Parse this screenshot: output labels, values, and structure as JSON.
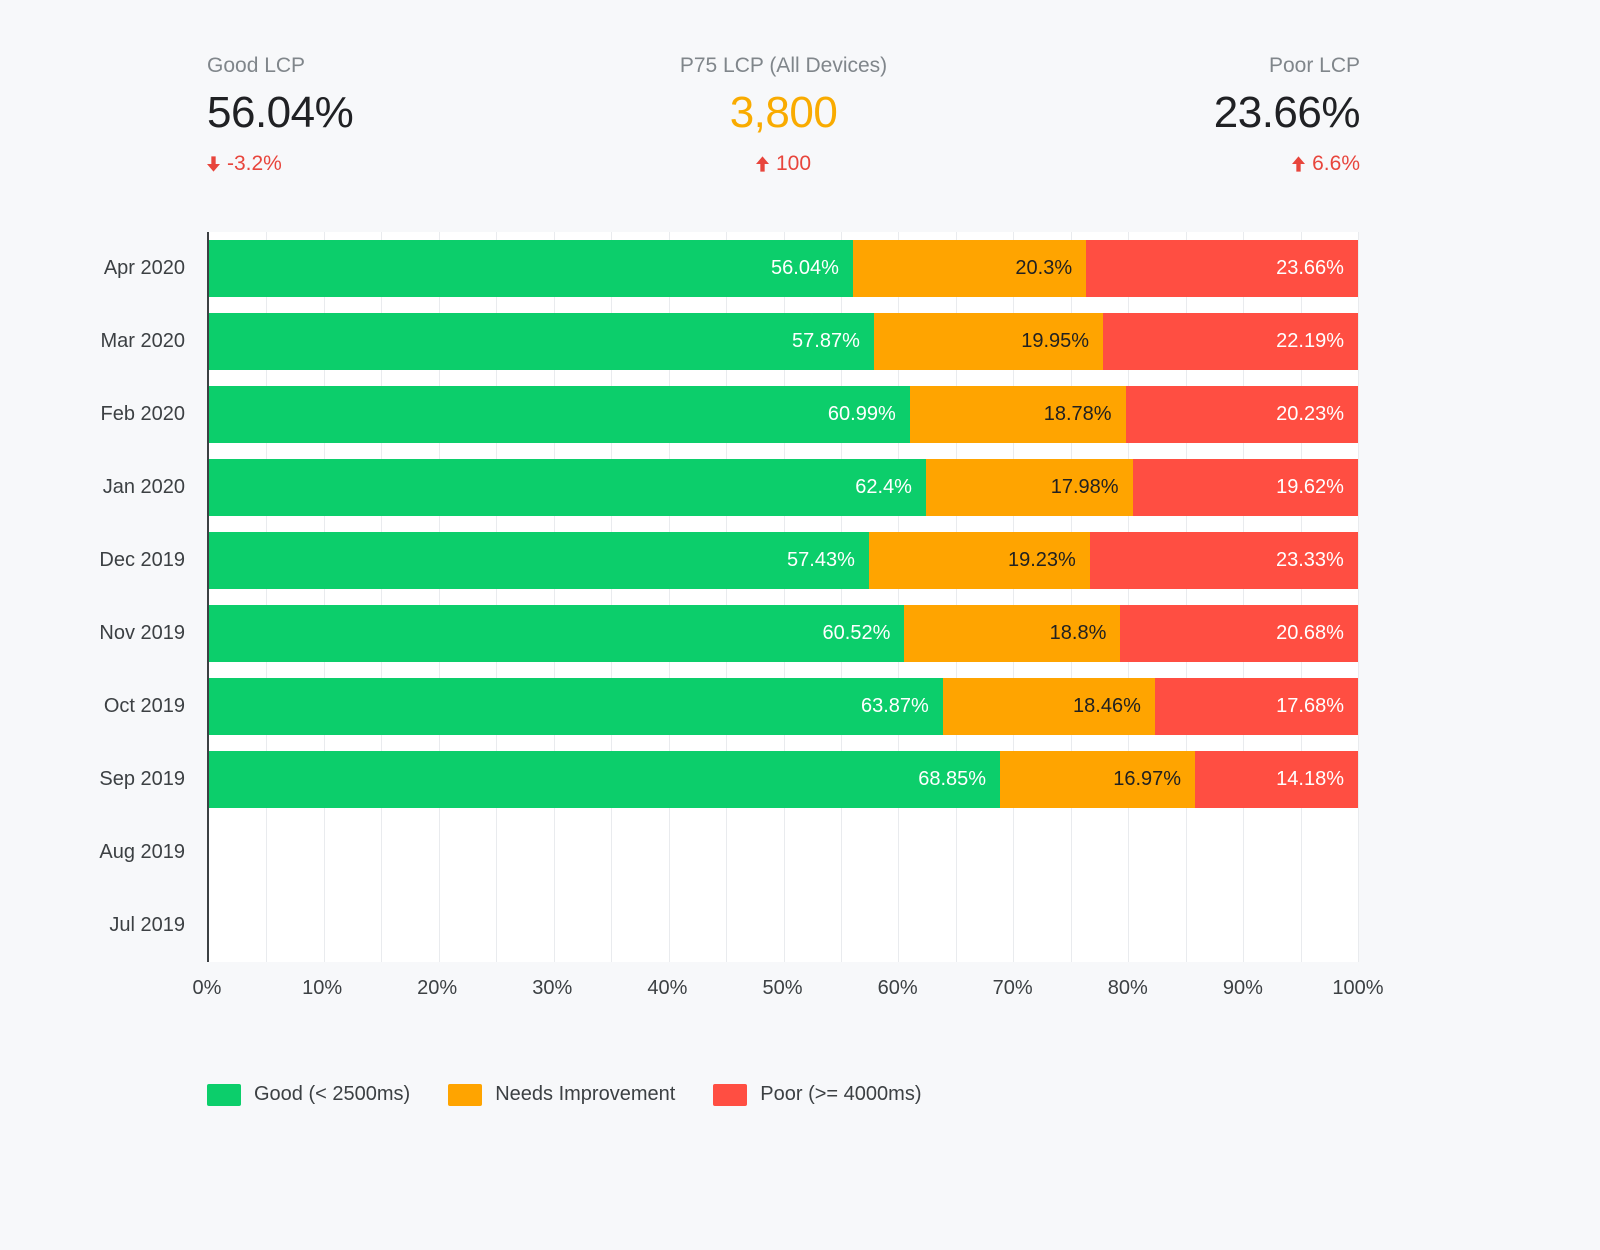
{
  "kpis": [
    {
      "label": "Good LCP",
      "value": "56.04%",
      "value_color": "#202124",
      "delta": "-3.2%",
      "delta_direction": "down",
      "delta_color": "#e8453c"
    },
    {
      "label": "P75 LCP (All Devices)",
      "value": "3,800",
      "value_color": "#f9ab00",
      "delta": "100",
      "delta_direction": "up",
      "delta_color": "#e8453c"
    },
    {
      "label": "Poor LCP",
      "value": "23.66%",
      "value_color": "#202124",
      "delta": "6.6%",
      "delta_direction": "up",
      "delta_color": "#e8453c"
    }
  ],
  "chart_data": {
    "type": "bar",
    "orientation": "horizontal",
    "stacked": true,
    "categories": [
      "Apr 2020",
      "Mar 2020",
      "Feb 2020",
      "Jan 2020",
      "Dec 2019",
      "Nov 2019",
      "Oct 2019",
      "Sep 2019",
      "Aug 2019",
      "Jul 2019"
    ],
    "series": [
      {
        "name": "Good (< 2500ms)",
        "color": "#0cce6b",
        "label_color": "#ffffff",
        "values": [
          56.04,
          57.87,
          60.99,
          62.4,
          57.43,
          60.52,
          63.87,
          68.85,
          null,
          null
        ]
      },
      {
        "name": "Needs Improvement",
        "color": "#ffa400",
        "label_color": "#212121",
        "values": [
          20.3,
          19.95,
          18.78,
          17.98,
          19.23,
          18.8,
          18.46,
          16.97,
          null,
          null
        ]
      },
      {
        "name": "Poor (>= 4000ms)",
        "color": "#ff4e42",
        "label_color": "#ffffff",
        "values": [
          23.66,
          22.19,
          20.23,
          19.62,
          23.33,
          20.68,
          17.68,
          14.18,
          null,
          null
        ]
      }
    ],
    "x_ticks": [
      "0%",
      "10%",
      "20%",
      "30%",
      "40%",
      "50%",
      "60%",
      "70%",
      "80%",
      "90%",
      "100%"
    ],
    "xlim": [
      0,
      100
    ],
    "value_suffix": "%",
    "grid": true,
    "legend_position": "bottom"
  }
}
